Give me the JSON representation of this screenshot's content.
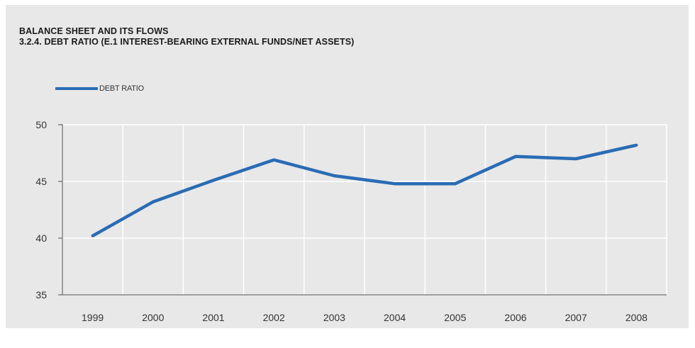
{
  "colors": {
    "background": "#e8e8e8",
    "grid": "#ffffff",
    "axis": "#555555",
    "line": "#2a6cb5"
  },
  "chart_data": {
    "type": "line",
    "title": "BALANCE SHEET AND ITS FLOWS",
    "subtitle": "3.2.4. DEBT RATIO (E.1 INTEREST-BEARING EXTERNAL FUNDS/NET ASSETS)",
    "categories": [
      "1999",
      "2000",
      "2001",
      "2002",
      "2003",
      "2004",
      "2005",
      "2006",
      "2007",
      "2008"
    ],
    "series": [
      {
        "name": "DEBT RATIO",
        "values": [
          40.2,
          43.2,
          45.1,
          46.9,
          45.5,
          44.8,
          44.8,
          47.2,
          47.0,
          48.2
        ]
      }
    ],
    "ylim": [
      35,
      50
    ],
    "yticks": [
      "35",
      "40",
      "45",
      "50"
    ],
    "xlabel": "",
    "ylabel": "",
    "grid": true,
    "legend_position": "top-left"
  }
}
